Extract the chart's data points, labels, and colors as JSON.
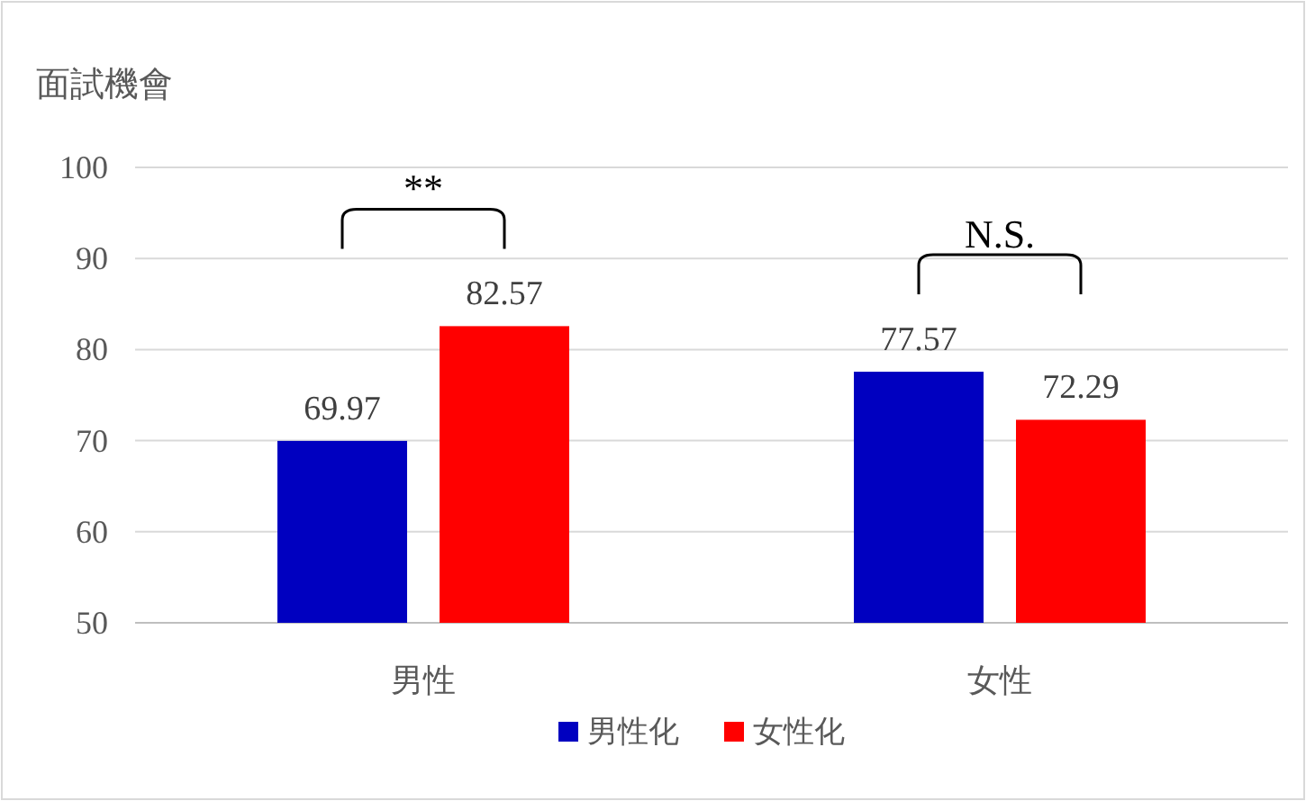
{
  "chart_data": {
    "type": "bar",
    "ylabel": "面試機會",
    "categories": [
      "男性",
      "女性"
    ],
    "series": [
      {
        "name": "男性化",
        "color": "#0000c0",
        "values": [
          69.97,
          77.57
        ]
      },
      {
        "name": "女性化",
        "color": "#ff0000",
        "values": [
          82.57,
          72.29
        ]
      }
    ],
    "ylim": [
      50,
      100
    ],
    "yticks": [
      50,
      60,
      70,
      80,
      90,
      100
    ],
    "grid": "y",
    "legend": "bottom",
    "data_labels": true,
    "annotations": [
      "**",
      "N.S."
    ]
  }
}
